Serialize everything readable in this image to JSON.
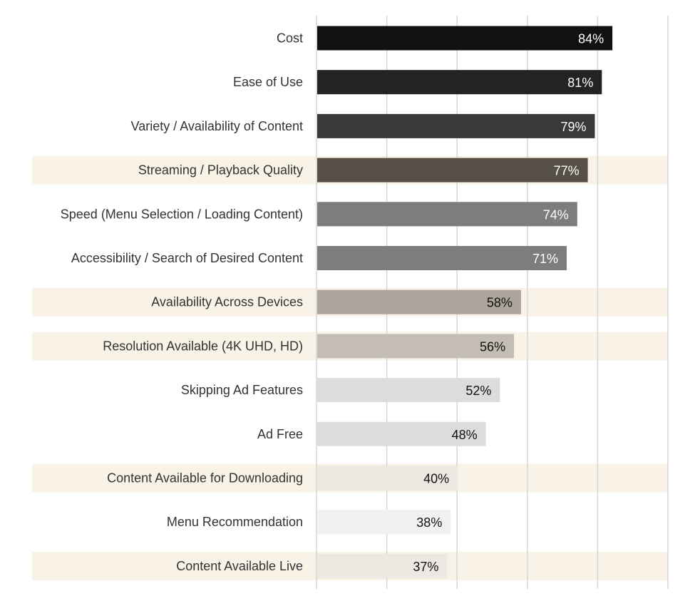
{
  "chart_data": {
    "type": "bar",
    "orientation": "horizontal",
    "grid": true,
    "xlim": [
      0,
      100
    ],
    "categories": [
      "Cost",
      "Ease of Use",
      "Variety / Availability of Content",
      "Streaming / Playback Quality",
      "Speed (Menu Selection / Loading Content)",
      "Accessibility / Search of Desired Content",
      "Availability Across Devices",
      "Resolution Available (4K UHD, HD)",
      "Skipping Ad Features",
      "Ad Free",
      "Content Available for Downloading",
      "Menu Recommendation",
      "Content Available Live"
    ],
    "values": [
      84,
      81,
      79,
      77,
      74,
      71,
      58,
      56,
      52,
      48,
      40,
      38,
      37
    ],
    "value_labels": [
      "84%",
      "81%",
      "79%",
      "77%",
      "74%",
      "71%",
      "58%",
      "56%",
      "52%",
      "48%",
      "40%",
      "38%",
      "37%"
    ],
    "highlighted_rows": [
      false,
      false,
      false,
      true,
      false,
      false,
      true,
      true,
      false,
      false,
      true,
      false,
      true
    ],
    "bar_colors": [
      "#111111",
      "#232323",
      "#39393a",
      "#565046",
      "#7d7d7d",
      "#7d7d7d",
      "#ada59c",
      "#c4bdb3",
      "#dcdcdc",
      "#dcdcdc",
      "#ece8e2",
      "#f1f1f1",
      "#ece8e2"
    ],
    "label_colors": [
      "#ffffff",
      "#ffffff",
      "#ffffff",
      "#ffffff",
      "#ffffff",
      "#ffffff",
      "#111111",
      "#111111",
      "#111111",
      "#111111",
      "#111111",
      "#111111",
      "#111111"
    ],
    "highlight_color": "#f8f2e7",
    "grid_color": "#d6d6d6"
  }
}
